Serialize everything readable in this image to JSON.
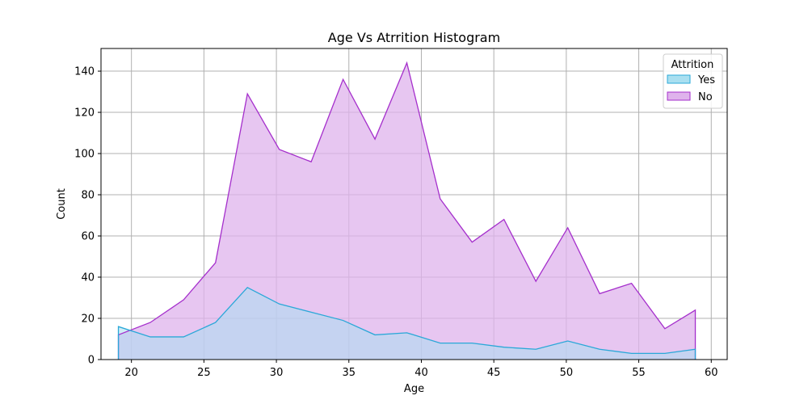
{
  "chart_data": {
    "type": "area",
    "title": "Age Vs Atrrition Histogram",
    "xlabel": "Age",
    "ylabel": "Count",
    "xlim": [
      17.9,
      61.1
    ],
    "ylim": [
      0,
      151
    ],
    "x_ticks": [
      20,
      25,
      30,
      35,
      40,
      45,
      50,
      55,
      60
    ],
    "y_ticks": [
      0,
      20,
      40,
      60,
      80,
      100,
      120,
      140
    ],
    "grid": true,
    "legend": {
      "title": "Attrition",
      "placement": "top-right"
    },
    "series": [
      {
        "name": "Yes",
        "color": "#2aa8d8",
        "fill": "#a9dff0",
        "x": [
          19.1,
          21.3,
          23.6,
          25.8,
          28.0,
          30.2,
          32.4,
          34.6,
          36.8,
          39.0,
          41.3,
          43.5,
          45.7,
          47.9,
          50.1,
          52.3,
          54.5,
          56.8,
          58.9
        ],
        "values": [
          16,
          11,
          11,
          18,
          35,
          27,
          23,
          19,
          12,
          13,
          8,
          8,
          6,
          5,
          9,
          5,
          3,
          3,
          5
        ]
      },
      {
        "name": "No",
        "color": "#a52fcc",
        "fill": "#dfb3ec",
        "x": [
          19.1,
          21.3,
          23.6,
          25.8,
          28.0,
          30.2,
          32.4,
          34.6,
          36.8,
          39.0,
          41.3,
          43.5,
          45.7,
          47.9,
          50.1,
          52.3,
          54.5,
          56.8,
          58.9
        ],
        "values": [
          12,
          18,
          29,
          47,
          129,
          102,
          96,
          136,
          107,
          144,
          78,
          57,
          68,
          38,
          64,
          32,
          37,
          15,
          24
        ]
      }
    ]
  }
}
